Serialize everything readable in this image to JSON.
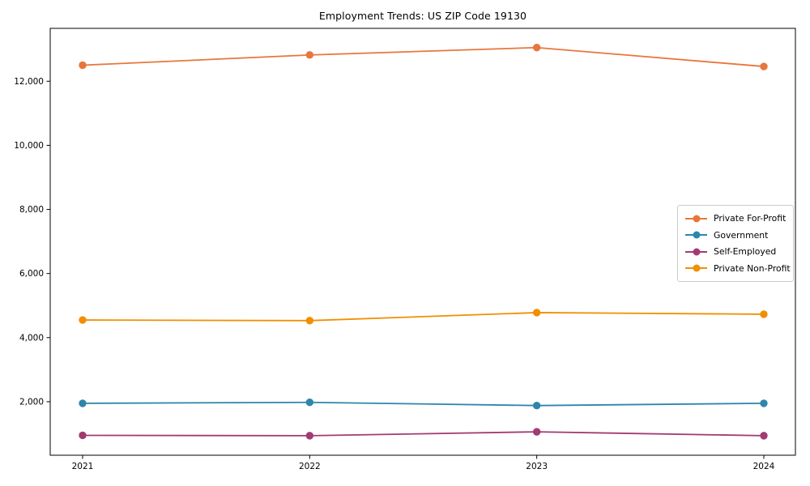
{
  "chart_data": {
    "type": "line",
    "title": "Employment Trends: US ZIP Code 19130",
    "xlabel": "",
    "ylabel": "",
    "categories": [
      "2021",
      "2022",
      "2023",
      "2024"
    ],
    "series": [
      {
        "name": "Private For-Profit",
        "color": "#E8763C",
        "values": [
          12500,
          12820,
          13050,
          12460
        ]
      },
      {
        "name": "Government",
        "color": "#2E86AB",
        "values": [
          1950,
          1980,
          1880,
          1950
        ]
      },
      {
        "name": "Self-Employed",
        "color": "#A23B72",
        "values": [
          950,
          940,
          1060,
          940
        ]
      },
      {
        "name": "Private Non-Profit",
        "color": "#F18F01",
        "values": [
          4550,
          4530,
          4780,
          4730
        ]
      }
    ],
    "y_ticks": [
      2000,
      4000,
      6000,
      8000,
      10000,
      12000
    ],
    "y_tick_labels": [
      "2,000",
      "4,000",
      "6,000",
      "8,000",
      "10,000",
      "12,000"
    ],
    "ylim": [
      330,
      13650
    ],
    "grid": false,
    "legend_position": "center-right",
    "marker": "circle",
    "axis_color": "#000000"
  }
}
